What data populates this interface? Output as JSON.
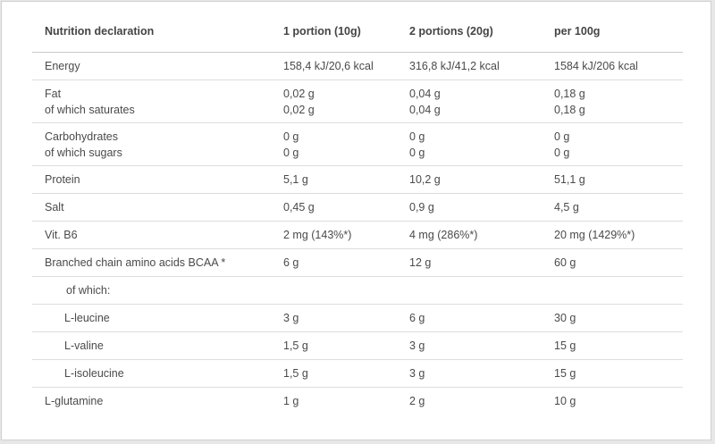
{
  "headers": [
    "Nutrition declaration",
    "1 portion (10g)",
    "2 portions (20g)",
    "per 100g"
  ],
  "rows": [
    {
      "label": [
        "Energy"
      ],
      "v1": [
        "158,4 kJ/20,6 kcal"
      ],
      "v2": [
        "316,8 kJ/41,2 kcal"
      ],
      "v3": [
        "1584 kJ/206 kcal"
      ]
    },
    {
      "label": [
        "Fat",
        "of which saturates"
      ],
      "v1": [
        "0,02 g",
        "0,02 g"
      ],
      "v2": [
        "0,04 g",
        "0,04 g"
      ],
      "v3": [
        "0,18 g",
        "0,18 g"
      ]
    },
    {
      "label": [
        "Carbohydrates",
        "of which sugars"
      ],
      "v1": [
        "0 g",
        "0 g"
      ],
      "v2": [
        "0 g",
        "0 g"
      ],
      "v3": [
        "0 g",
        "0 g"
      ]
    },
    {
      "label": [
        "Protein"
      ],
      "v1": [
        "5,1 g"
      ],
      "v2": [
        "10,2 g"
      ],
      "v3": [
        "51,1 g"
      ]
    },
    {
      "label": [
        "Salt"
      ],
      "v1": [
        "0,45 g"
      ],
      "v2": [
        "0,9 g"
      ],
      "v3": [
        "4,5 g"
      ]
    },
    {
      "label": [
        "Vit. B6"
      ],
      "v1": [
        "2 mg (143%*)"
      ],
      "v2": [
        "4 mg (286%*)"
      ],
      "v3": [
        "20 mg (1429%*)"
      ]
    },
    {
      "label": [
        "Branched chain amino acids BCAA *"
      ],
      "v1": [
        "6 g"
      ],
      "v2": [
        "12 g"
      ],
      "v3": [
        "60 g"
      ]
    },
    {
      "label": [
        "of which:"
      ],
      "v1": [
        ""
      ],
      "v2": [
        ""
      ],
      "v3": [
        ""
      ]
    },
    {
      "label": [
        "L-leucine"
      ],
      "v1": [
        "3 g"
      ],
      "v2": [
        "6 g"
      ],
      "v3": [
        "30 g"
      ]
    },
    {
      "label": [
        "L-valine"
      ],
      "v1": [
        "1,5 g"
      ],
      "v2": [
        "3 g"
      ],
      "v3": [
        "15 g"
      ]
    },
    {
      "label": [
        "L-isoleucine"
      ],
      "v1": [
        "1,5 g"
      ],
      "v2": [
        "3 g"
      ],
      "v3": [
        "15 g"
      ]
    },
    {
      "label": [
        "L-glutamine"
      ],
      "v1": [
        "1 g"
      ],
      "v2": [
        "2 g"
      ],
      "v3": [
        "10 g"
      ]
    }
  ]
}
